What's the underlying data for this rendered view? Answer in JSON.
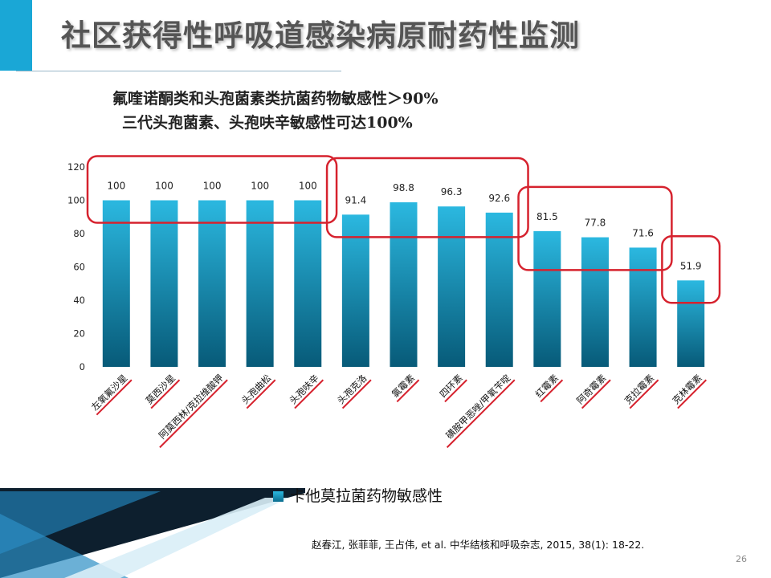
{
  "slide": {
    "title": "社区获得性呼吸道感染病原耐药性监测",
    "subtitle_line1": "氟喹诺酮类和头孢菌素类抗菌药物敏感性＞90%",
    "subtitle_line2": "三代头孢菌素、头孢呋辛敏感性可达100%",
    "legend_label": "卡他莫拉菌药物敏感性",
    "citation": "赵春江, 张菲菲, 王占伟, et al. 中华结核和呼吸杂志, 2015, 38(1): 18-22.",
    "page_number": "26"
  },
  "colors": {
    "accent": "#1aa7d6",
    "bar_top": "#2bb8e0",
    "bar_bottom": "#075a78",
    "highlight": "#d6222e"
  },
  "chart_data": {
    "type": "bar",
    "categories": [
      "左氧氟沙星",
      "莫西沙星",
      "阿莫西林/克拉维酸钾",
      "头孢曲松",
      "头孢呋辛",
      "头孢克洛",
      "氯霉素",
      "四环素",
      "磺胺甲恶唑/甲氧苄啶",
      "红霉素",
      "阿奇霉素",
      "克拉霉素",
      "克林霉素"
    ],
    "series": [
      {
        "name": "卡他莫拉菌药物敏感性",
        "values": [
          100,
          100,
          100,
          100,
          100,
          91.4,
          98.8,
          96.3,
          92.6,
          81.5,
          77.8,
          71.6,
          51.9
        ],
        "labels": [
          "100",
          "100",
          "100",
          "100",
          "100",
          "91.4",
          "98.8",
          "96.3",
          "92.6",
          "81.5",
          "77.8",
          "71.6",
          "51.9"
        ]
      }
    ],
    "ylim": [
      0,
      120
    ],
    "yticks": [
      "0",
      "20",
      "40",
      "60",
      "80",
      "100",
      "120"
    ],
    "grid": false,
    "legend_position": "bottom-left",
    "highlight_groups": [
      [
        0,
        4
      ],
      [
        5,
        8
      ],
      [
        9,
        11
      ],
      [
        12,
        12
      ]
    ]
  }
}
